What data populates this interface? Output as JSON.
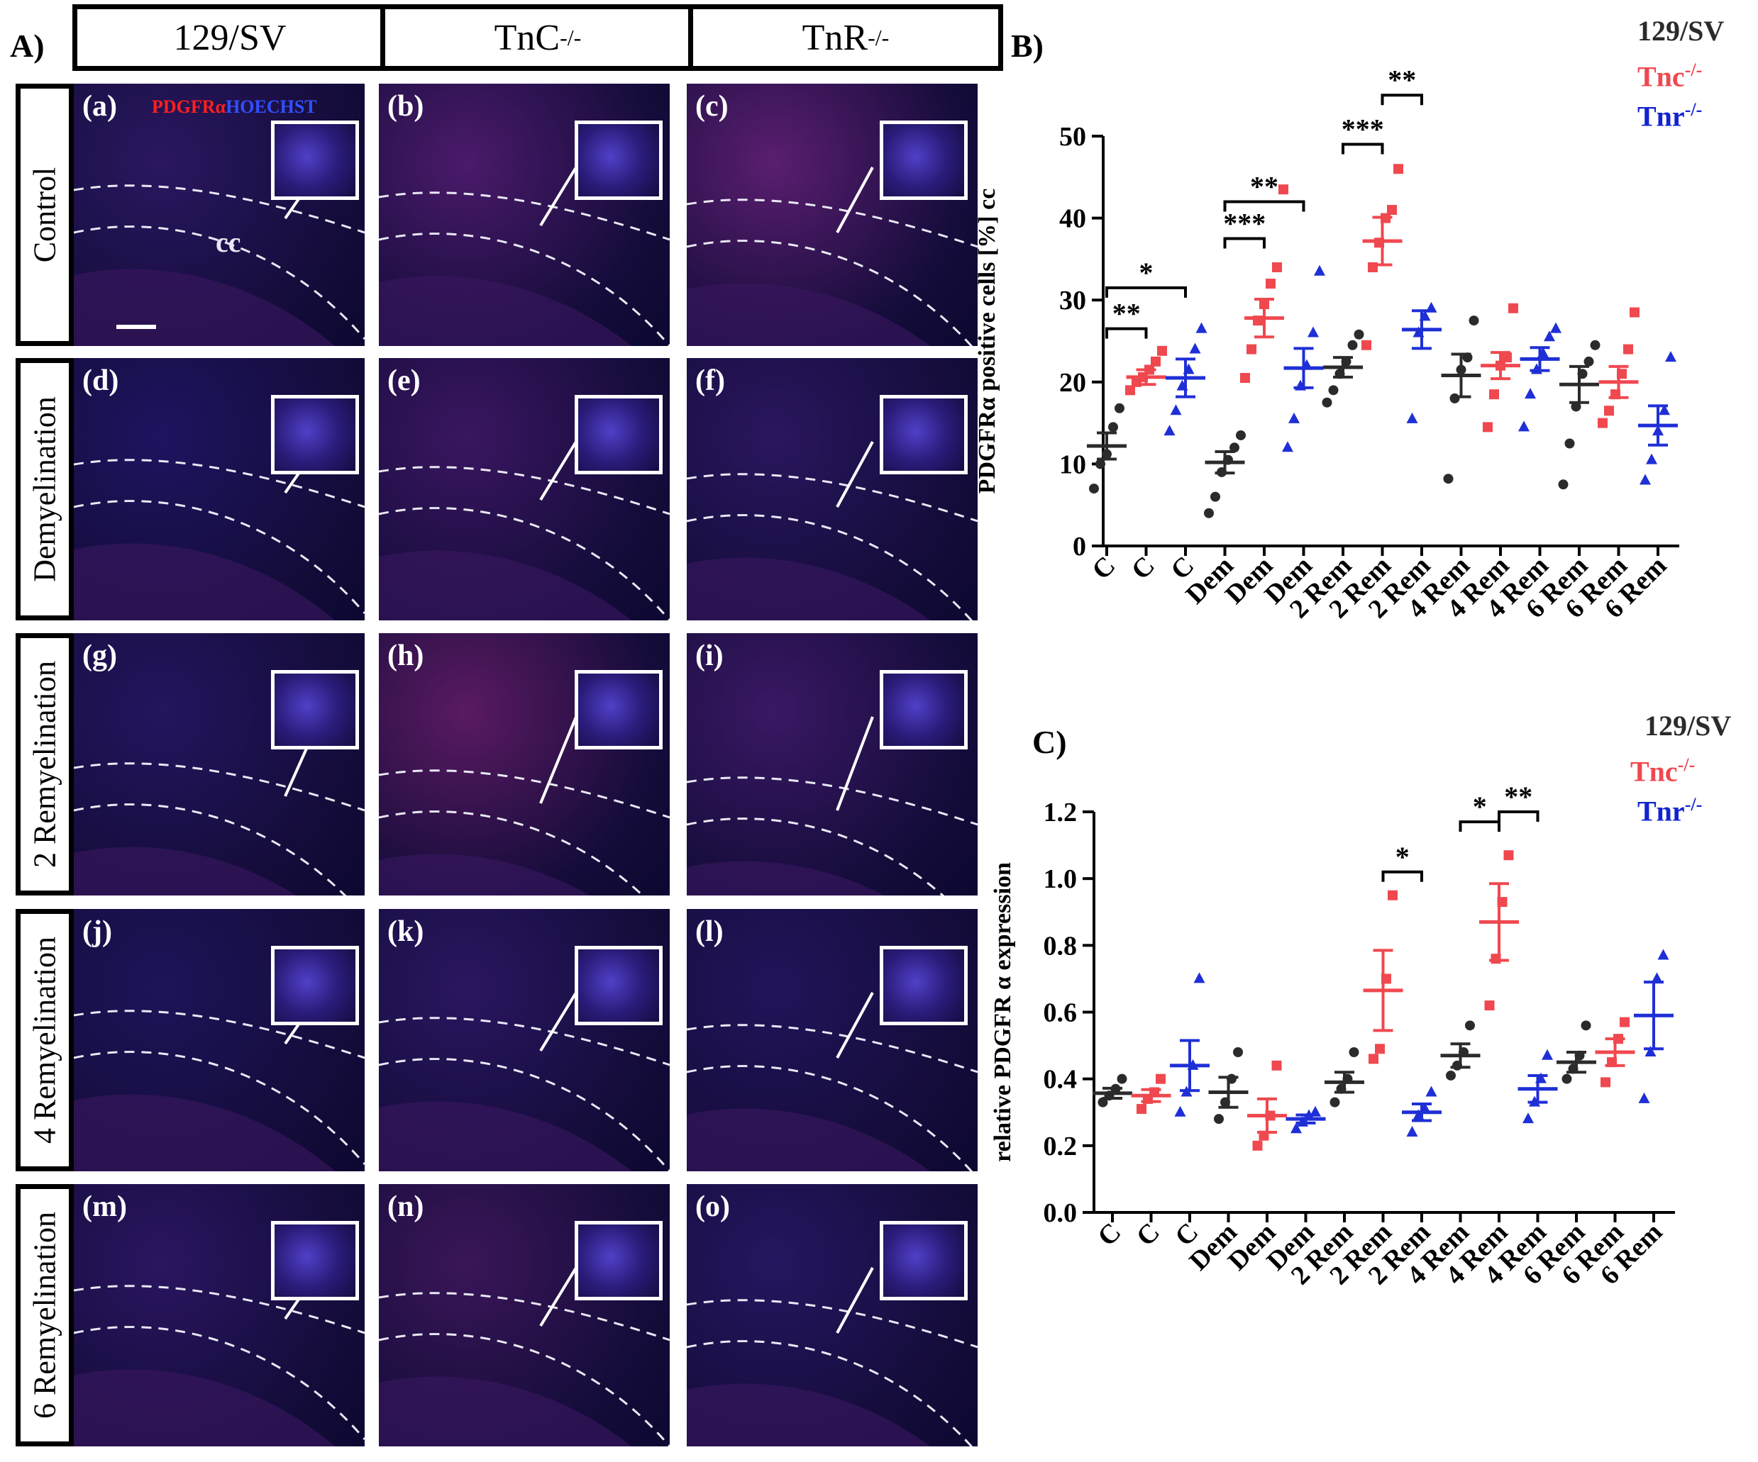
{
  "panel_A": {
    "letter": "A)",
    "columns": [
      "129/SV",
      "TnC",
      "TnR"
    ],
    "column_sup": [
      "",
      "-/-",
      "-/-"
    ],
    "rows": [
      "Control",
      "Demyelination",
      "2 Remyelination",
      "4 Remyelination",
      "6 Remyelination"
    ],
    "image_labels": [
      "(a)",
      "(b)",
      "(c)",
      "(d)",
      "(e)",
      "(f)",
      "(g)",
      "(h)",
      "(i)",
      "(j)",
      "(k)",
      "(l)",
      "(m)",
      "(n)",
      "(o)"
    ],
    "stain_red": "PDGFRα",
    "stain_blue": "HOECHST",
    "cc_label": "cc"
  },
  "colors": {
    "black": "#2b2b2b",
    "red": "#f0484f",
    "blue": "#1f2fd6",
    "blue_text": "#1224d0",
    "tissue_dark": "#1a1040"
  },
  "chart_data": [
    {
      "id": "B",
      "type": "scatter",
      "panel_letter": "B)",
      "title": "",
      "ylabel": "PDGFRα positive cells [%] cc",
      "ylim": [
        0,
        50
      ],
      "yticks": [
        0,
        10,
        20,
        30,
        40,
        50
      ],
      "categories": [
        "C",
        "C",
        "C",
        "Dem",
        "Dem",
        "Dem",
        "2 Rem",
        "2 Rem",
        "2 Rem",
        "4 Rem",
        "4 Rem",
        "4 Rem",
        "6 Rem",
        "6 Rem",
        "6 Rem"
      ],
      "legend": [
        {
          "name": "129/SV",
          "sup": ""
        },
        {
          "name": "Tnc",
          "sup": "-/-"
        },
        {
          "name": "Tnr",
          "sup": "-/-"
        }
      ],
      "groups": [
        {
          "series": 0,
          "mean": 12.2,
          "sem": 1.6,
          "points": [
            7.0,
            10.0,
            11.2,
            14.5,
            16.8
          ]
        },
        {
          "series": 1,
          "mean": 20.6,
          "sem": 0.9,
          "points": [
            19.0,
            20.0,
            20.6,
            21.5,
            22.5,
            23.8
          ]
        },
        {
          "series": 2,
          "mean": 20.5,
          "sem": 2.3,
          "points": [
            14.0,
            16.5,
            19.5,
            21.5,
            24.0,
            26.5
          ]
        },
        {
          "series": 0,
          "mean": 10.2,
          "sem": 1.3,
          "points": [
            4.0,
            6.0,
            9.0,
            10.5,
            12.0,
            13.5
          ]
        },
        {
          "series": 1,
          "mean": 27.8,
          "sem": 2.3,
          "points": [
            20.5,
            24.0,
            27.5,
            29.5,
            32.0,
            34.0,
            43.5
          ]
        },
        {
          "series": 2,
          "mean": 21.7,
          "sem": 2.4,
          "points": [
            12.0,
            15.5,
            19.5,
            22.0,
            26.0,
            33.5
          ]
        },
        {
          "series": 0,
          "mean": 21.8,
          "sem": 1.2,
          "points": [
            17.5,
            19.0,
            21.0,
            22.5,
            24.5,
            25.8
          ]
        },
        {
          "series": 1,
          "mean": 37.2,
          "sem": 2.9,
          "points": [
            24.5,
            34.0,
            37.0,
            40.0,
            41.0,
            46.0
          ]
        },
        {
          "series": 2,
          "mean": 26.4,
          "sem": 2.3,
          "points": [
            15.5,
            26.0,
            28.0,
            29.0
          ]
        },
        {
          "series": 0,
          "mean": 20.8,
          "sem": 2.6,
          "points": [
            8.2,
            18.0,
            21.5,
            23.0,
            27.5
          ]
        },
        {
          "series": 1,
          "mean": 22.0,
          "sem": 1.6,
          "points": [
            14.5,
            18.5,
            22.0,
            23.0,
            29.0
          ]
        },
        {
          "series": 2,
          "mean": 22.8,
          "sem": 1.4,
          "points": [
            14.5,
            18.5,
            21.5,
            23.5,
            25.5,
            26.5
          ]
        },
        {
          "series": 0,
          "mean": 19.7,
          "sem": 2.2,
          "points": [
            7.5,
            12.5,
            17.0,
            21.0,
            22.5,
            24.5
          ]
        },
        {
          "series": 1,
          "mean": 20.0,
          "sem": 1.9,
          "points": [
            15.0,
            16.5,
            18.5,
            21.0,
            24.0,
            28.5
          ]
        },
        {
          "series": 2,
          "mean": 14.7,
          "sem": 2.4,
          "points": [
            8.0,
            10.5,
            14.0,
            16.5,
            23.0
          ]
        }
      ],
      "significance": [
        {
          "from": 0,
          "to": 1,
          "y": 26.5,
          "label": "**"
        },
        {
          "from": 0,
          "to": 2,
          "y": 31.5,
          "label": "*"
        },
        {
          "from": 3,
          "to": 4,
          "y": 37.5,
          "label": "***"
        },
        {
          "from": 3,
          "to": 5,
          "y": 42.0,
          "label": "**"
        },
        {
          "from": 6,
          "to": 7,
          "y": 49.0,
          "label": "***"
        },
        {
          "from": 7,
          "to": 8,
          "y": 55.0,
          "label": "**"
        }
      ]
    },
    {
      "id": "C",
      "type": "scatter",
      "panel_letter": "C)",
      "title": "",
      "ylabel": "relative PDGFR α expression",
      "ylim": [
        0,
        1.2
      ],
      "yticks": [
        0.0,
        0.2,
        0.4,
        0.6,
        0.8,
        1.0,
        1.2
      ],
      "tick_labels": [
        "0.0",
        "0.2",
        "0.4",
        "0.6",
        "0.8",
        "1.0",
        "1.2"
      ],
      "categories": [
        "C",
        "C",
        "C",
        "Dem",
        "Dem",
        "Dem",
        "2 Rem",
        "2 Rem",
        "2 Rem",
        "4 Rem",
        "4 Rem",
        "4 Rem",
        "6 Rem",
        "6 Rem",
        "6 Rem"
      ],
      "legend": [
        {
          "name": "129/SV",
          "sup": ""
        },
        {
          "name": "Tnc",
          "sup": "-/-"
        },
        {
          "name": "Tnr",
          "sup": "-/-"
        }
      ],
      "groups": [
        {
          "series": 0,
          "mean": 0.357,
          "sem": 0.015,
          "points": [
            0.33,
            0.35,
            0.37,
            0.4
          ]
        },
        {
          "series": 1,
          "mean": 0.35,
          "sem": 0.018,
          "points": [
            0.31,
            0.34,
            0.36,
            0.4
          ]
        },
        {
          "series": 2,
          "mean": 0.44,
          "sem": 0.075,
          "points": [
            0.3,
            0.36,
            0.44,
            0.7
          ]
        },
        {
          "series": 0,
          "mean": 0.36,
          "sem": 0.045,
          "points": [
            0.28,
            0.33,
            0.4,
            0.48
          ]
        },
        {
          "series": 1,
          "mean": 0.29,
          "sem": 0.05,
          "points": [
            0.2,
            0.23,
            0.29,
            0.44
          ]
        },
        {
          "series": 2,
          "mean": 0.28,
          "sem": 0.012,
          "points": [
            0.25,
            0.27,
            0.29,
            0.3
          ]
        },
        {
          "series": 0,
          "mean": 0.39,
          "sem": 0.03,
          "points": [
            0.33,
            0.37,
            0.4,
            0.48
          ]
        },
        {
          "series": 1,
          "mean": 0.665,
          "sem": 0.12,
          "points": [
            0.46,
            0.49,
            0.7,
            0.95
          ]
        },
        {
          "series": 2,
          "mean": 0.3,
          "sem": 0.025,
          "points": [
            0.24,
            0.29,
            0.31,
            0.36
          ]
        },
        {
          "series": 0,
          "mean": 0.47,
          "sem": 0.035,
          "points": [
            0.41,
            0.44,
            0.48,
            0.56
          ]
        },
        {
          "series": 1,
          "mean": 0.87,
          "sem": 0.115,
          "points": [
            0.62,
            0.76,
            0.93,
            1.07
          ]
        },
        {
          "series": 2,
          "mean": 0.37,
          "sem": 0.04,
          "points": [
            0.28,
            0.33,
            0.4,
            0.47
          ]
        },
        {
          "series": 0,
          "mean": 0.45,
          "sem": 0.03,
          "points": [
            0.4,
            0.43,
            0.47,
            0.56
          ]
        },
        {
          "series": 1,
          "mean": 0.48,
          "sem": 0.04,
          "points": [
            0.39,
            0.45,
            0.52,
            0.57
          ]
        },
        {
          "series": 2,
          "mean": 0.59,
          "sem": 0.1,
          "points": [
            0.34,
            0.48,
            0.7,
            0.77
          ]
        }
      ],
      "significance": [
        {
          "from": 7,
          "to": 8,
          "y": 1.02,
          "label": "*"
        },
        {
          "from": 9,
          "to": 10,
          "y": 1.17,
          "label": "*"
        },
        {
          "from": 10,
          "to": 11,
          "y": 1.2,
          "label": "**"
        }
      ]
    }
  ]
}
